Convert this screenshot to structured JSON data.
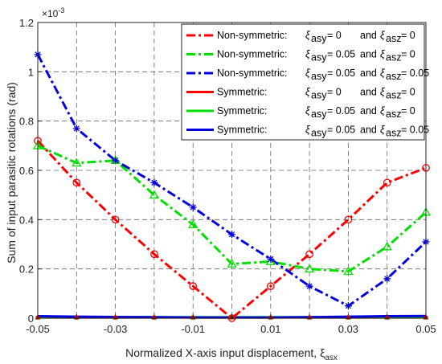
{
  "chart_data": {
    "type": "line",
    "xlabel": "Normalized X-axis input displacement, ξ",
    "xlabel_sub": "asx",
    "ylabel": "Sum of input parasitic rotations (rad)",
    "y_exponent_label": "×10",
    "y_exponent_power": "-3",
    "xlim": [
      -0.05,
      0.05
    ],
    "ylim": [
      0,
      1.2
    ],
    "grid": true,
    "legend_position": "top-right",
    "x_ticks": [
      {
        "value": -0.05,
        "label": "-0.05"
      },
      {
        "value": -0.03,
        "label": "-0.03"
      },
      {
        "value": -0.01,
        "label": "-0.01"
      },
      {
        "value": 0.01,
        "label": "0.01"
      },
      {
        "value": 0.03,
        "label": "0.03"
      },
      {
        "value": 0.05,
        "label": "0.05"
      }
    ],
    "x_grid": [
      -0.05,
      -0.04,
      -0.03,
      -0.02,
      -0.01,
      0,
      0.01,
      0.02,
      0.03,
      0.04,
      0.05
    ],
    "y_ticks": [
      {
        "value": 0,
        "label": "0"
      },
      {
        "value": 0.2,
        "label": "0.2"
      },
      {
        "value": 0.4,
        "label": "0.4"
      },
      {
        "value": 0.6,
        "label": "0.6"
      },
      {
        "value": 0.8,
        "label": "0.8"
      },
      {
        "value": 1.0,
        "label": "1"
      },
      {
        "value": 1.2,
        "label": "1.2"
      }
    ],
    "x": [
      -0.05,
      -0.04,
      -0.03,
      -0.02,
      -0.01,
      0,
      0.01,
      0.02,
      0.03,
      0.04,
      0.05
    ],
    "series": [
      {
        "name": "Non-symmetric:",
        "sy": "0",
        "sz": "0",
        "color": "#ff0000",
        "dash": "dashdot",
        "marker": "circle",
        "values": [
          0.72,
          0.55,
          0.4,
          0.26,
          0.13,
          0.0,
          0.13,
          0.26,
          0.4,
          0.55,
          0.61
        ]
      },
      {
        "name": "Non-symmetric:",
        "sy": "0.05",
        "sz": "0",
        "color": "#00e000",
        "dash": "dashdot",
        "marker": "triangle",
        "values": [
          0.7,
          0.63,
          0.64,
          0.5,
          0.38,
          0.22,
          0.23,
          0.2,
          0.19,
          0.29,
          0.43
        ]
      },
      {
        "name": "Non-symmetric:",
        "sy": "0.05",
        "sz": "0.05",
        "color": "#0000e0",
        "dash": "dashdot",
        "marker": "star",
        "values": [
          1.07,
          0.77,
          0.64,
          0.55,
          0.45,
          0.34,
          0.24,
          0.13,
          0.05,
          0.16,
          0.31
        ]
      },
      {
        "name": "Symmetric:",
        "sy": "0",
        "sz": "0",
        "color": "#ff0000",
        "dash": "solid",
        "marker": "none",
        "values": [
          0.003,
          0.003,
          0.003,
          0.003,
          0.003,
          0.003,
          0.003,
          0.003,
          0.003,
          0.003,
          0.003
        ]
      },
      {
        "name": "Symmetric:",
        "sy": "0.05",
        "sz": "0",
        "color": "#00e000",
        "dash": "solid",
        "marker": "none",
        "values": [
          0.004,
          0.004,
          0.004,
          0.004,
          0.004,
          0.004,
          0.004,
          0.004,
          0.004,
          0.004,
          0.004
        ]
      },
      {
        "name": "Symmetric:",
        "sy": "0.05",
        "sz": "0.05",
        "color": "#0000e0",
        "dash": "solid",
        "marker": "none",
        "values": [
          0.008,
          0.006,
          0.005,
          0.004,
          0.003,
          0.003,
          0.003,
          0.004,
          0.006,
          0.008,
          0.009
        ]
      }
    ],
    "overlay_markers": {
      "x": [
        -0.05,
        -0.04,
        -0.03,
        -0.02,
        -0.01,
        0,
        0.01,
        0.02,
        0.03,
        0.04,
        0.05
      ],
      "y": 0.003,
      "color": "#cc0000"
    },
    "legend_symbol": "ξ",
    "legend_sub_y": "asy",
    "legend_sub_z": "asz",
    "legend_eq": "=",
    "legend_and": "and"
  }
}
